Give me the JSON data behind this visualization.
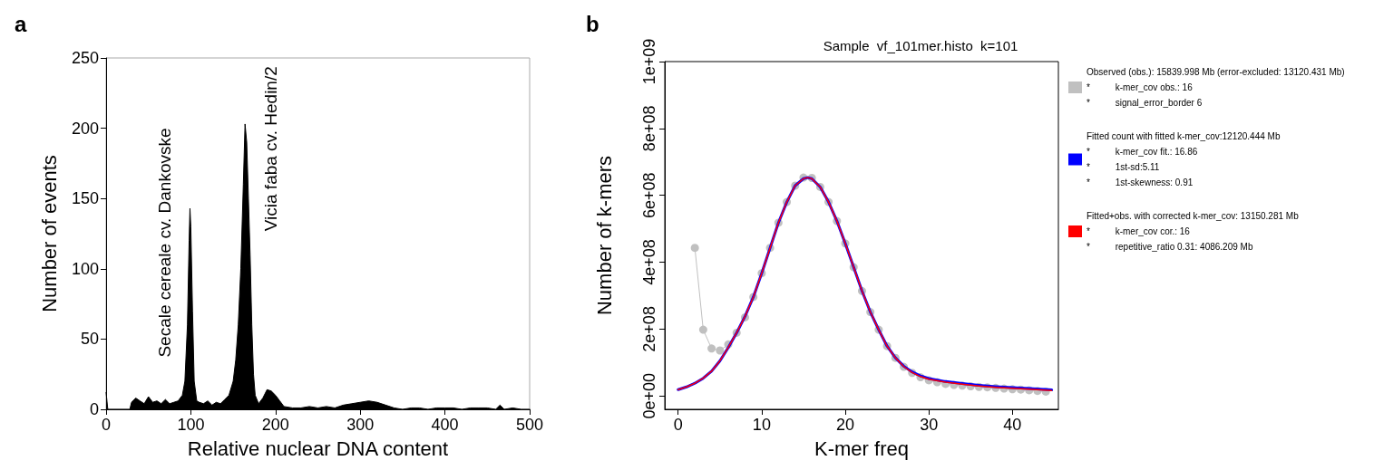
{
  "chart_data": [
    {
      "type": "area",
      "xlabel": "Relative nuclear DNA content",
      "ylabel": "Number of events",
      "annotations": [
        "a",
        {
          "text": "Secale cereale cv. Dankovske",
          "x": 99,
          "y": 143
        },
        {
          "text": "Vicia faba cv. Hedin/2",
          "x": 164,
          "y": 203
        }
      ],
      "xlim": [
        0,
        500
      ],
      "ylim": [
        0,
        250
      ],
      "xticks": [
        0,
        100,
        200,
        300,
        400,
        500
      ],
      "yticks": [
        0,
        50,
        100,
        150,
        200,
        250
      ],
      "x": [
        0,
        2,
        28,
        30,
        35,
        40,
        45,
        50,
        55,
        60,
        65,
        70,
        75,
        80,
        85,
        90,
        93,
        96,
        98,
        99,
        100,
        102,
        104,
        107,
        110,
        115,
        120,
        125,
        130,
        135,
        140,
        145,
        150,
        153,
        156,
        159,
        162,
        164,
        166,
        168,
        170,
        172,
        174,
        176,
        180,
        185,
        190,
        195,
        200,
        205,
        210,
        220,
        230,
        240,
        250,
        260,
        270,
        280,
        290,
        300,
        310,
        320,
        330,
        340,
        350,
        360,
        370,
        380,
        390,
        400,
        410,
        420,
        430,
        440,
        450,
        460,
        465,
        470,
        480,
        490,
        500
      ],
      "series": [
        {
          "color": "#000000",
          "values": [
            12,
            0,
            0,
            5,
            8,
            6,
            4,
            9,
            5,
            6,
            4,
            7,
            4,
            5,
            6,
            10,
            20,
            60,
            120,
            143,
            130,
            70,
            20,
            6,
            5,
            4,
            6,
            3,
            5,
            4,
            7,
            10,
            20,
            35,
            60,
            100,
            160,
            203,
            190,
            150,
            110,
            60,
            25,
            10,
            4,
            8,
            14,
            13,
            10,
            6,
            2,
            1,
            1,
            2,
            1,
            2,
            1,
            3,
            4,
            5,
            6,
            5,
            3,
            1,
            0,
            1,
            1,
            0,
            1,
            1,
            1,
            0,
            1,
            1,
            1,
            0,
            3,
            0,
            1,
            0,
            0
          ]
        }
      ]
    },
    {
      "type": "line",
      "title": "Sample  vf_101mer.histo  k=101",
      "xlabel": "K-mer freq",
      "ylabel": "Number of k-mers",
      "annotations": [
        "b"
      ],
      "legend": "right",
      "xlim": [
        -1.6,
        45.5
      ],
      "ylim": [
        -40000000.0,
        1000000000.0
      ],
      "xticks": [
        0,
        10,
        20,
        30,
        40
      ],
      "yticks": [
        {
          "value": 0,
          "label": "0e+00"
        },
        {
          "value": 200000000.0,
          "label": "2e+08"
        },
        {
          "value": 400000000.0,
          "label": "4e+08"
        },
        {
          "value": 600000000.0,
          "label": "6e+08"
        },
        {
          "value": 800000000.0,
          "label": "8e+08"
        },
        {
          "value": 1000000000.0,
          "label": "1e+09"
        }
      ],
      "series": [
        {
          "name": "Observed (obs.): 15839.998 Mb (error-excluded: 13120.431 Mb)\n*          k-mer_cov obs.: 16\n*          signal_error_border 6",
          "color": "#c0c0c0",
          "marker": "circle",
          "x": [
            2,
            3,
            4,
            5,
            6,
            7,
            8,
            9,
            10,
            11,
            12,
            13,
            14,
            15,
            16,
            17,
            18,
            19,
            20,
            21,
            22,
            23,
            24,
            25,
            26,
            27,
            28,
            29,
            30,
            31,
            32,
            33,
            34,
            35,
            36,
            37,
            38,
            39,
            40,
            41,
            42,
            43,
            44
          ],
          "values": [
            443000000.0,
            198000000.0,
            142000000.0,
            136000000.0,
            154000000.0,
            189000000.0,
            235000000.0,
            296000000.0,
            367000000.0,
            443000000.0,
            518000000.0,
            580000000.0,
            629000000.0,
            653000000.0,
            652000000.0,
            625000000.0,
            580000000.0,
            523000000.0,
            456000000.0,
            385000000.0,
            314000000.0,
            251000000.0,
            198000000.0,
            149000000.0,
            114000000.0,
            87000000.0,
            69000000.0,
            56000000.0,
            47000000.0,
            41000000.0,
            36000000.0,
            33000000.0,
            31000000.0,
            29000000.0,
            27000000.0,
            26000000.0,
            24000000.0,
            22000000.0,
            20000000.0,
            19000000.0,
            17000000.0,
            15000000.0,
            13000000.0
          ]
        },
        {
          "name": "Fitted count with fitted k-mer_cov:12120.444 Mb\n*          k-mer_cov fit.: 16.86\n*          1st-sd:5.11\n*          1st-skewness: 0.91",
          "color": "#0000ff",
          "marker": "none",
          "x": [
            0,
            1,
            2,
            3,
            4,
            5,
            6,
            7,
            8,
            9,
            10,
            11,
            12,
            13,
            14,
            15,
            15.5,
            16,
            17,
            18,
            19,
            20,
            21,
            22,
            23,
            24,
            25,
            26,
            27,
            28,
            29,
            30,
            32,
            34,
            36,
            38,
            40,
            42,
            44.7
          ],
          "values": [
            19000000.0,
            27000000.0,
            38000000.0,
            53000000.0,
            74000000.0,
            105000000.0,
            145000000.0,
            189000000.0,
            238000000.0,
            296000000.0,
            367000000.0,
            443000000.0,
            518000000.0,
            580000000.0,
            629000000.0,
            650000000.0,
            653000000.0,
            650000000.0,
            625000000.0,
            580000000.0,
            523000000.0,
            456000000.0,
            385000000.0,
            314000000.0,
            251000000.0,
            198000000.0,
            149000000.0,
            114000000.0,
            89000000.0,
            72000000.0,
            60000000.0,
            52000000.0,
            43000000.0,
            37000000.0,
            32000000.0,
            28000000.0,
            25000000.0,
            22000000.0,
            18000000.0
          ]
        },
        {
          "name": "Fitted+obs. with corrected k-mer_cov: 13150.281 Mb\n*          k-mer_cov cor.: 16\n*          repetitive_ratio 0.31: 4086.209 Mb",
          "color": "#ff0000",
          "marker": "none",
          "x": [
            0,
            1,
            2,
            3,
            4,
            5,
            6,
            7,
            8,
            9,
            10,
            11,
            12,
            13,
            14,
            15,
            15.5,
            16,
            17,
            18,
            19,
            20,
            21,
            22,
            23,
            24,
            25,
            26,
            27,
            28,
            29,
            30,
            32,
            34,
            36,
            38,
            40,
            42,
            44.7
          ],
          "values": [
            19000000.0,
            27000000.0,
            38000000.0,
            53000000.0,
            74000000.0,
            105000000.0,
            145000000.0,
            189000000.0,
            238000000.0,
            296000000.0,
            367000000.0,
            443000000.0,
            518000000.0,
            580000000.0,
            629000000.0,
            650000000.0,
            653000000.0,
            650000000.0,
            625000000.0,
            580000000.0,
            523000000.0,
            456000000.0,
            385000000.0,
            314000000.0,
            251000000.0,
            198000000.0,
            149000000.0,
            114000000.0,
            88000000.0,
            70000000.0,
            58000000.0,
            50000000.0,
            41000000.0,
            35000000.0,
            30000000.0,
            26000000.0,
            23000000.0,
            20000000.0,
            16000000.0
          ]
        }
      ]
    }
  ]
}
